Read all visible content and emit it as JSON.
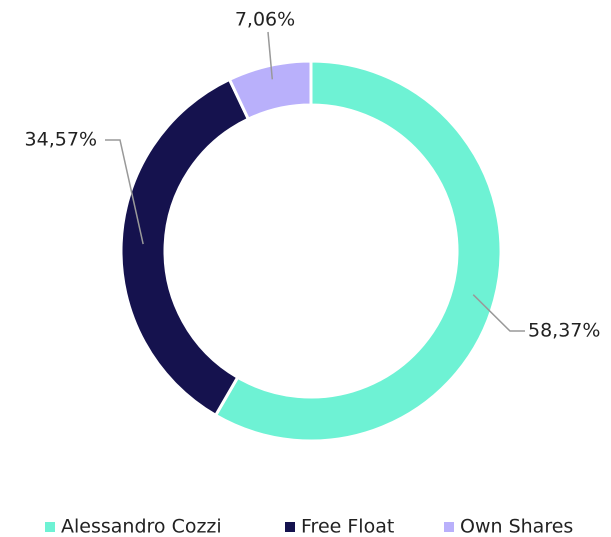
{
  "chart_data": {
    "type": "pie",
    "categories": [
      "Alessandro Cozzi",
      "Free Float",
      "Own Shares"
    ],
    "values": [
      58.37,
      34.57,
      7.06
    ],
    "value_labels": [
      "58,37%",
      "34,57%",
      "7,06%"
    ],
    "colors": [
      "#6ef2d4",
      "#15124e",
      "#b9b0fb"
    ],
    "legend": "bottom"
  }
}
